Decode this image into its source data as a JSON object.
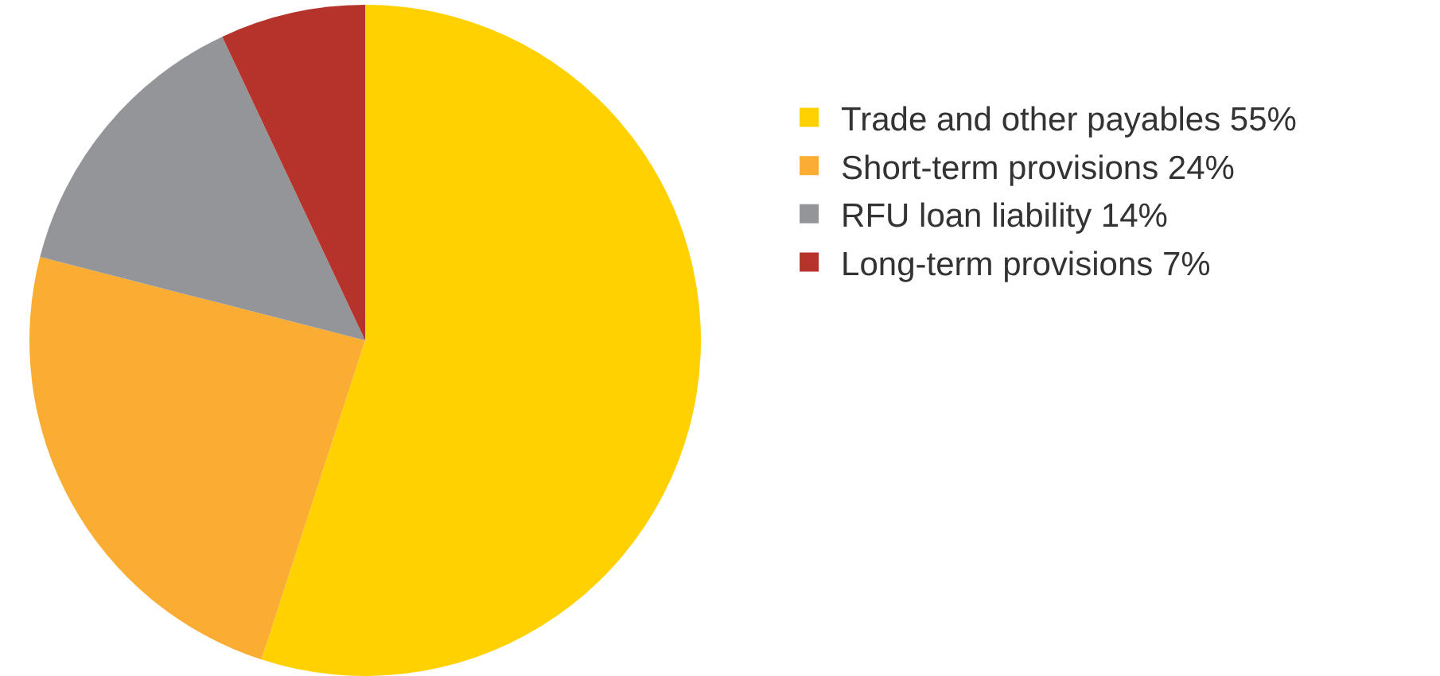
{
  "chart_data": {
    "type": "pie",
    "categories": [
      "Trade and other payables 55%",
      "Short-term provisions 24%",
      "RFU loan liability 14%",
      "Long-term provisions 7%"
    ],
    "values": [
      55,
      24,
      14,
      7
    ],
    "colors": [
      "#ffd100",
      "#fbad33",
      "#939598",
      "#b5332a"
    ],
    "legend": "right"
  }
}
